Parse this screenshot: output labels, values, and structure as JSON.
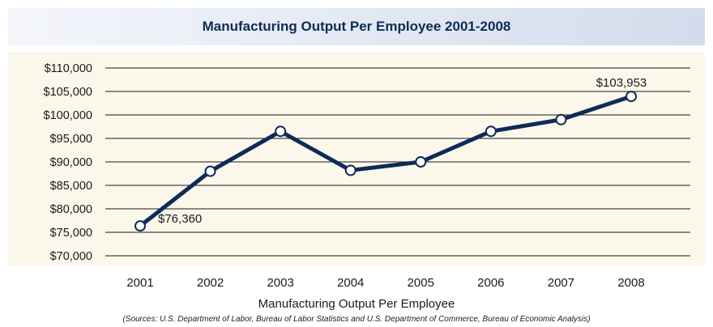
{
  "header": {
    "title": "Manufacturing Output Per Employee 2001-2008"
  },
  "chart_data": {
    "type": "line",
    "title": "Manufacturing Output Per Employee 2001-2008",
    "xlabel": "Manufacturing Output Per Employee",
    "ylabel": "",
    "categories": [
      "2001",
      "2002",
      "2003",
      "2004",
      "2005",
      "2006",
      "2007",
      "2008"
    ],
    "series": [
      {
        "values": [
          76360,
          88000,
          96500,
          88200,
          90000,
          96500,
          99000,
          103953
        ],
        "color": "#0d2b57"
      }
    ],
    "ylim": [
      70000,
      110000
    ],
    "yticks": [
      70000,
      75000,
      80000,
      85000,
      90000,
      95000,
      100000,
      105000,
      110000
    ],
    "ytick_labels": [
      "$70,000",
      "$75,000",
      "$80,000",
      "$85,000",
      "$90,000",
      "$95,000",
      "$100,000",
      "$105,000",
      "$110,000"
    ],
    "data_labels": [
      {
        "index": 0,
        "text": "$76,360",
        "position": "right"
      },
      {
        "index": 7,
        "text": "$103,953",
        "position": "above"
      }
    ],
    "grid": "horizontal",
    "legend": "none"
  },
  "source_note": "(Sources: U.S. Department of Labor, Bureau of Labor Statistics and U.S. Department of Commerce, Bureau of Economic Analysis)",
  "colors": {
    "line": "#0d2b57",
    "plot_background": "#fbf7ea",
    "title_text": "#0d2b57",
    "grid": "#1a1a1a"
  }
}
